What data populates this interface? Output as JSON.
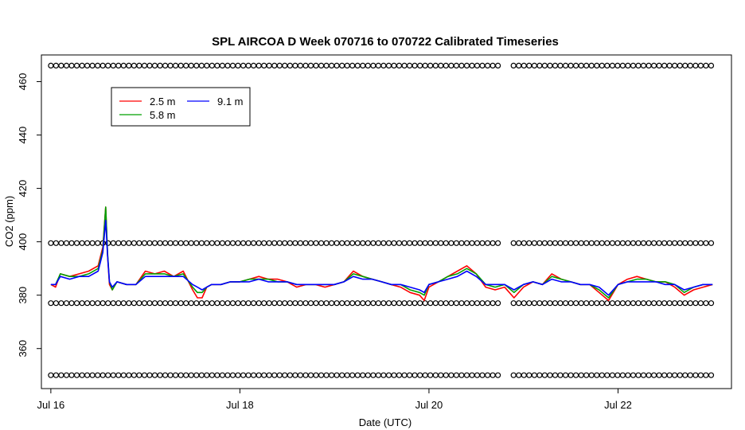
{
  "chart_data": {
    "type": "line",
    "title": "SPL AIRCOA D  Week 070716 to 070722  Calibrated Timeseries",
    "xlabel": "Date (UTC)",
    "ylabel": "CO2 (ppm)",
    "xlim": [
      -0.1,
      7.2
    ],
    "ylim": [
      345,
      470
    ],
    "x_ticks": [
      {
        "value": 0,
        "label": "Jul 16"
      },
      {
        "value": 2,
        "label": "Jul 18"
      },
      {
        "value": 4,
        "label": "Jul 20"
      },
      {
        "value": 6,
        "label": "Jul 22"
      }
    ],
    "y_ticks": [
      360,
      380,
      400,
      420,
      440,
      460
    ],
    "legend": {
      "position": "top-left",
      "entries": [
        {
          "label": "2.5 m",
          "color": "#ff0000"
        },
        {
          "label": "5.8 m",
          "color": "#00a000"
        },
        {
          "label": "9.1 m",
          "color": "#0000ff"
        }
      ]
    },
    "series": [
      {
        "name": "2.5 m",
        "color": "#ff0000",
        "x": [
          0,
          0.05,
          0.1,
          0.2,
          0.3,
          0.4,
          0.5,
          0.55,
          0.58,
          0.6,
          0.62,
          0.65,
          0.7,
          0.8,
          0.9,
          1.0,
          1.1,
          1.2,
          1.3,
          1.4,
          1.5,
          1.55,
          1.6,
          1.65,
          1.7,
          1.8,
          1.9,
          2.0,
          2.1,
          2.2,
          2.3,
          2.4,
          2.5,
          2.6,
          2.7,
          2.8,
          2.9,
          3.0,
          3.1,
          3.2,
          3.3,
          3.4,
          3.5,
          3.6,
          3.7,
          3.8,
          3.9,
          3.95,
          4.0,
          4.1,
          4.2,
          4.3,
          4.4,
          4.5,
          4.6,
          4.7,
          4.8,
          4.9,
          5.0,
          5.1,
          5.2,
          5.3,
          5.4,
          5.5,
          5.6,
          5.7,
          5.8,
          5.9,
          6.0,
          6.1,
          6.2,
          6.3,
          6.4,
          6.5,
          6.6,
          6.7,
          6.8,
          6.9,
          7.0
        ],
        "values": [
          384,
          383,
          388,
          387,
          388,
          389,
          391,
          398,
          413,
          395,
          384,
          382,
          385,
          384,
          384,
          389,
          388,
          389,
          387,
          389,
          382,
          379,
          379,
          383,
          384,
          384,
          385,
          385,
          386,
          387,
          386,
          386,
          385,
          383,
          384,
          384,
          383,
          384,
          385,
          389,
          387,
          386,
          385,
          384,
          383,
          381,
          380,
          378,
          383,
          385,
          387,
          389,
          391,
          388,
          383,
          382,
          383,
          379,
          383,
          385,
          384,
          388,
          386,
          385,
          384,
          384,
          381,
          378,
          384,
          386,
          387,
          386,
          385,
          385,
          383,
          380,
          382,
          383,
          384
        ]
      },
      {
        "name": "5.8 m",
        "color": "#00a000",
        "x": [
          0,
          0.05,
          0.1,
          0.2,
          0.3,
          0.4,
          0.5,
          0.55,
          0.58,
          0.6,
          0.62,
          0.65,
          0.7,
          0.8,
          0.9,
          1.0,
          1.1,
          1.2,
          1.3,
          1.4,
          1.5,
          1.55,
          1.6,
          1.65,
          1.7,
          1.8,
          1.9,
          2.0,
          2.1,
          2.2,
          2.3,
          2.4,
          2.5,
          2.6,
          2.7,
          2.8,
          2.9,
          3.0,
          3.1,
          3.2,
          3.3,
          3.4,
          3.5,
          3.6,
          3.7,
          3.8,
          3.9,
          3.95,
          4.0,
          4.1,
          4.2,
          4.3,
          4.4,
          4.5,
          4.6,
          4.7,
          4.8,
          4.9,
          5.0,
          5.1,
          5.2,
          5.3,
          5.4,
          5.5,
          5.6,
          5.7,
          5.8,
          5.9,
          6.0,
          6.1,
          6.2,
          6.3,
          6.4,
          6.5,
          6.6,
          6.7,
          6.8,
          6.9,
          7.0
        ],
        "values": [
          384,
          384,
          388,
          387,
          387,
          388,
          390,
          397,
          413,
          396,
          385,
          382,
          385,
          384,
          384,
          388,
          388,
          388,
          387,
          388,
          383,
          381,
          381,
          383,
          384,
          384,
          385,
          385,
          386,
          386,
          386,
          385,
          385,
          384,
          384,
          384,
          384,
          384,
          385,
          388,
          387,
          386,
          385,
          384,
          384,
          382,
          381,
          380,
          384,
          385,
          387,
          388,
          390,
          388,
          384,
          383,
          384,
          381,
          384,
          385,
          384,
          387,
          386,
          385,
          384,
          384,
          382,
          379,
          384,
          385,
          386,
          386,
          385,
          385,
          384,
          381,
          383,
          384,
          384
        ]
      },
      {
        "name": "9.1 m",
        "color": "#0000ff",
        "x": [
          0,
          0.05,
          0.1,
          0.2,
          0.3,
          0.4,
          0.5,
          0.55,
          0.58,
          0.6,
          0.62,
          0.65,
          0.7,
          0.8,
          0.9,
          1.0,
          1.1,
          1.2,
          1.3,
          1.4,
          1.5,
          1.55,
          1.6,
          1.65,
          1.7,
          1.8,
          1.9,
          2.0,
          2.1,
          2.2,
          2.3,
          2.4,
          2.5,
          2.6,
          2.7,
          2.8,
          2.9,
          3.0,
          3.1,
          3.2,
          3.3,
          3.4,
          3.5,
          3.6,
          3.7,
          3.8,
          3.9,
          3.95,
          4.0,
          4.1,
          4.2,
          4.3,
          4.4,
          4.5,
          4.6,
          4.7,
          4.8,
          4.9,
          5.0,
          5.1,
          5.2,
          5.3,
          5.4,
          5.5,
          5.6,
          5.7,
          5.8,
          5.9,
          6.0,
          6.1,
          6.2,
          6.3,
          6.4,
          6.5,
          6.6,
          6.7,
          6.8,
          6.9,
          7.0
        ],
        "values": [
          384,
          384,
          387,
          386,
          387,
          387,
          389,
          396,
          408,
          395,
          385,
          383,
          385,
          384,
          384,
          387,
          387,
          387,
          387,
          387,
          384,
          383,
          382,
          383,
          384,
          384,
          385,
          385,
          385,
          386,
          385,
          385,
          385,
          384,
          384,
          384,
          384,
          384,
          385,
          387,
          386,
          386,
          385,
          384,
          384,
          383,
          382,
          381,
          384,
          385,
          386,
          387,
          389,
          387,
          384,
          384,
          384,
          382,
          384,
          385,
          384,
          386,
          385,
          385,
          384,
          384,
          383,
          380,
          384,
          385,
          385,
          385,
          385,
          384,
          384,
          382,
          383,
          384,
          384
        ]
      }
    ],
    "reference_levels": [
      {
        "value": 350,
        "x_range": [
          0,
          7.0
        ],
        "gap": [
          4.75,
          4.85
        ]
      },
      {
        "value": 377,
        "x_range": [
          0,
          7.0
        ],
        "gap": [
          4.75,
          4.85
        ]
      },
      {
        "value": 399.5,
        "x_range": [
          0,
          7.0
        ],
        "gap": [
          4.75,
          4.85
        ]
      },
      {
        "value": 466,
        "x_range": [
          0,
          7.0
        ],
        "gap": [
          4.75,
          4.85
        ]
      }
    ]
  }
}
